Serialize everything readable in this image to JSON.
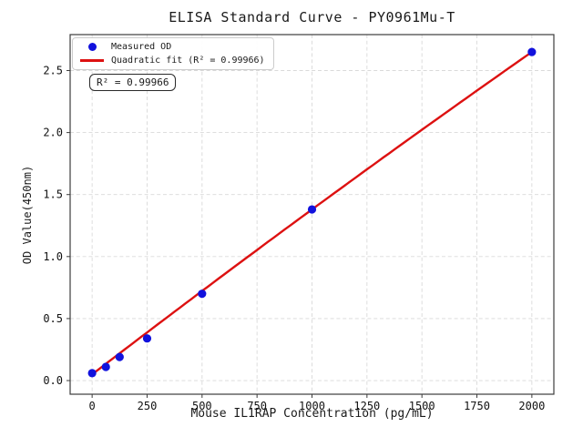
{
  "figure": {
    "title": "ELISA Standard Curve - PY0961Mu-T",
    "xlabel": "Mouse IL1RAP Concentration (pg/mL)",
    "ylabel": "OD Value(450nm)",
    "r2_box_text": "R² = 0.99966"
  },
  "legend": {
    "items": [
      {
        "label": "Measured OD",
        "marker": "dot",
        "color": "#1212dd"
      },
      {
        "label": "Quadratic fit (R² = 0.99966)",
        "marker": "line",
        "color": "#dd1111"
      }
    ]
  },
  "chart_data": {
    "type": "scatter",
    "title": "ELISA Standard Curve - PY0961Mu-T",
    "xlabel": "Mouse IL1RAP Concentration (pg/mL)",
    "ylabel": "OD Value(450nm)",
    "series": [
      {
        "name": "Measured OD",
        "type": "scatter",
        "color": "#1212dd",
        "x": [
          0,
          62.5,
          125,
          250,
          500,
          1000,
          2000
        ],
        "y": [
          0.06,
          0.11,
          0.19,
          0.34,
          0.7,
          1.38,
          2.65
        ]
      },
      {
        "name": "Quadratic fit",
        "type": "line",
        "color": "#dd1111",
        "fit_coefficients": {
          "a": 0.05,
          "b": 0.00136,
          "c": -3e-08
        },
        "r_squared": 0.99966,
        "x_range": [
          0,
          2000
        ]
      }
    ],
    "xlim": [
      -100,
      2100
    ],
    "ylim": [
      -0.11,
      2.79
    ],
    "xticks": [
      0,
      250,
      500,
      750,
      1000,
      1250,
      1500,
      1750,
      2000
    ],
    "xtick_labels": [
      "0",
      "250",
      "500",
      "750",
      "1000",
      "1250",
      "1500",
      "1750",
      "2000"
    ],
    "yticks": [
      0.0,
      0.5,
      1.0,
      1.5,
      2.0,
      2.5
    ],
    "ytick_labels": [
      "0.0",
      "0.5",
      "1.0",
      "1.5",
      "2.0",
      "2.5"
    ],
    "grid": true,
    "grid_color": "#d9d9d9",
    "grid_style": "dashed",
    "spine_color": "#3c3c3c",
    "legend_position": "upper left"
  }
}
